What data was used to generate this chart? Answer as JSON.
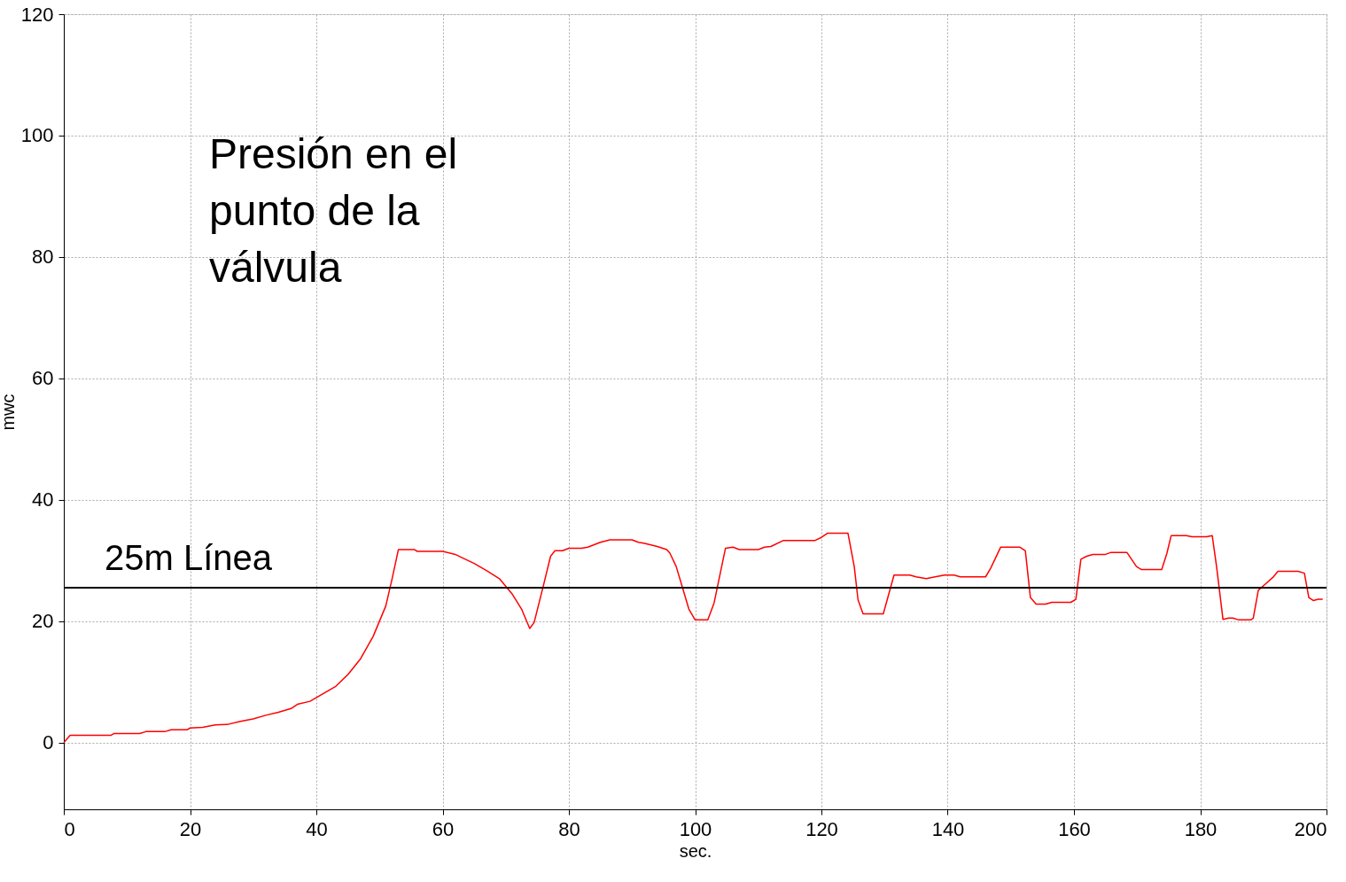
{
  "chart_data": {
    "type": "line",
    "xlabel": "sec.",
    "ylabel": "mwc",
    "xlim": [
      0,
      200
    ],
    "ylim": [
      -11,
      120
    ],
    "xticks": [
      0,
      20,
      40,
      60,
      80,
      100,
      120,
      140,
      160,
      180,
      200
    ],
    "yticks": [
      0,
      20,
      40,
      60,
      80,
      100,
      120
    ],
    "grid": true,
    "marker": "none",
    "line_style": "solid",
    "annotations": [
      "Presión en el\npunto de la\nválvula"
    ],
    "ref_lines": [
      {
        "axis": "y",
        "value": 25.5,
        "label": "25m Línea",
        "color": "#000000"
      }
    ],
    "series": [
      {
        "color": "#ff0000",
        "x": [
          0,
          1,
          7.5,
          8,
          12,
          13,
          16,
          17,
          19.5,
          20,
          22,
          24,
          26,
          28,
          30,
          32,
          34,
          36,
          37,
          39,
          41,
          43,
          45,
          47,
          49,
          51,
          52,
          53,
          55.5,
          56,
          60,
          62,
          63,
          65,
          67,
          69,
          71,
          72.5,
          73.8,
          74.5,
          76,
          77.1,
          77.8,
          79,
          80,
          82,
          83,
          85,
          86.5,
          90,
          91,
          92,
          94,
          95.5,
          96,
          97,
          98,
          99,
          100,
          102,
          103,
          104,
          104.8,
          106,
          107,
          110,
          111,
          112,
          114,
          119,
          120,
          121,
          124.2,
          125.2,
          125.8,
          126.6,
          129.8,
          131.5,
          134,
          135,
          136.6,
          138,
          139.5,
          141,
          142,
          146,
          146.8,
          148.4,
          151.4,
          152.3,
          153.1,
          154,
          155.5,
          156.5,
          159.5,
          160.3,
          161.1,
          162,
          163,
          165,
          165.8,
          168.4,
          169.9,
          170.7,
          173.9,
          174.7,
          175.4,
          177.8,
          178.7,
          181,
          181.9,
          182.6,
          183.6,
          184.5,
          185.2,
          186.1,
          188,
          188.4,
          189.2,
          190.3,
          191.5,
          192.3,
          195.5,
          196.5,
          197.2,
          197.9,
          198.7,
          199.4
        ],
        "values": [
          0,
          1.2,
          1.2,
          1.5,
          1.5,
          1.8,
          1.8,
          2.1,
          2.1,
          2.4,
          2.5,
          2.9,
          3.0,
          3.5,
          3.9,
          4.5,
          5.0,
          5.6,
          6.3,
          6.8,
          8.0,
          9.2,
          11.2,
          13.8,
          17.5,
          22.5,
          27,
          31.8,
          31.8,
          31.5,
          31.5,
          31,
          30.5,
          29.5,
          28.3,
          27,
          24.5,
          22,
          18.8,
          19.8,
          26,
          30.7,
          31.6,
          31.6,
          32,
          32,
          32.2,
          33,
          33.4,
          33.4,
          33,
          32.8,
          32.3,
          31.8,
          31.2,
          29,
          25.5,
          22,
          20.2,
          20.2,
          23,
          28,
          32,
          32.2,
          31.8,
          31.8,
          32.2,
          32.3,
          33.3,
          33.3,
          33.8,
          34.5,
          34.5,
          29,
          23.5,
          21.2,
          21.2,
          27.6,
          27.6,
          27.3,
          27.0,
          27.3,
          27.6,
          27.6,
          27.3,
          27.3,
          28.7,
          32.2,
          32.2,
          31.6,
          23.9,
          22.8,
          22.8,
          23.1,
          23.1,
          23.6,
          30.2,
          30.7,
          31.0,
          31.0,
          31.3,
          31.3,
          29.0,
          28.5,
          28.5,
          31.1,
          34.1,
          34.1,
          33.9,
          33.9,
          34.1,
          28.9,
          20.3,
          20.5,
          20.5,
          20.2,
          20.2,
          20.5,
          25.1,
          26.1,
          27.2,
          28.2,
          28.2,
          27.9,
          23.9,
          23.4,
          23.6,
          23.6
        ]
      }
    ]
  }
}
